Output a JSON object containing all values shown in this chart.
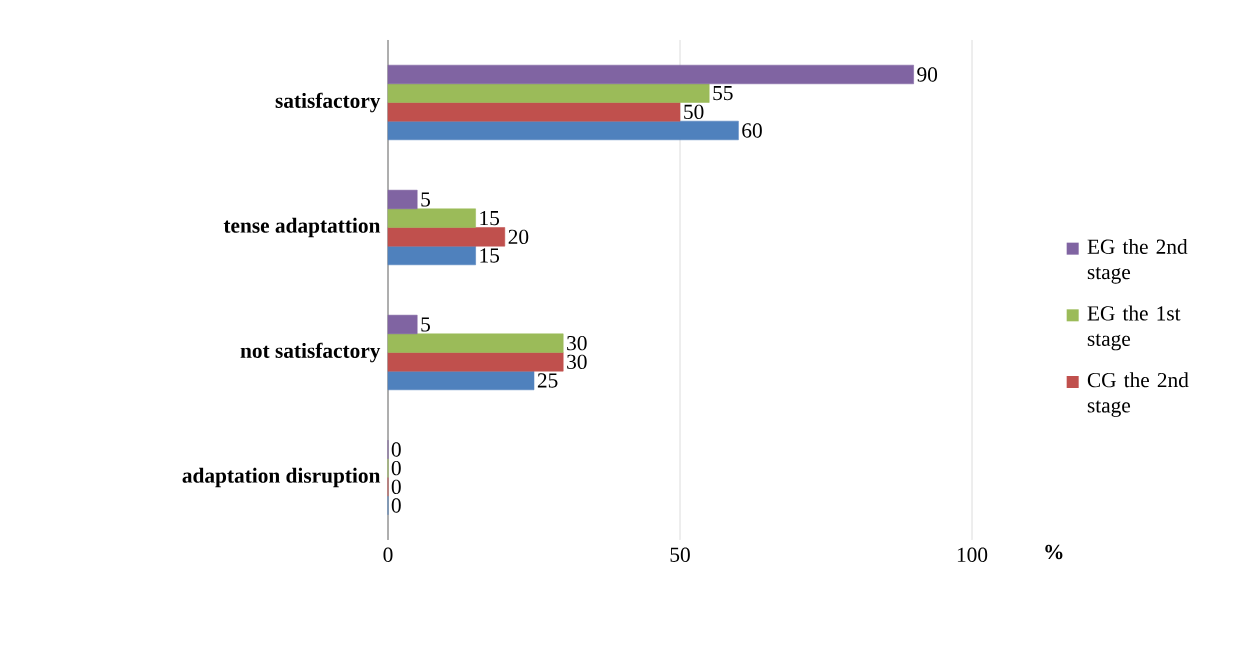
{
  "chart_data": {
    "type": "bar",
    "orientation": "horizontal",
    "xlabel": "%",
    "categories": [
      "satisfactory",
      "tense adaptattion",
      "not satisfactory",
      "adaptation disruption"
    ],
    "series": [
      {
        "color": "#4f81bd",
        "values": [
          60,
          15,
          25,
          0
        ]
      },
      {
        "name": "CG the 2nd stage",
        "color": "#c0504d",
        "values": [
          50,
          20,
          30,
          0
        ]
      },
      {
        "name": "EG the 1st stage",
        "color": "#9bbb59",
        "values": [
          55,
          15,
          30,
          0
        ]
      },
      {
        "name": "EG the 2nd stage",
        "color": "#8064a2",
        "values": [
          90,
          5,
          5,
          0
        ]
      }
    ],
    "xlim": [
      0,
      100
    ],
    "xticks": [
      0,
      50,
      100
    ],
    "grid": "x",
    "legend": "right",
    "data_labels": true
  }
}
